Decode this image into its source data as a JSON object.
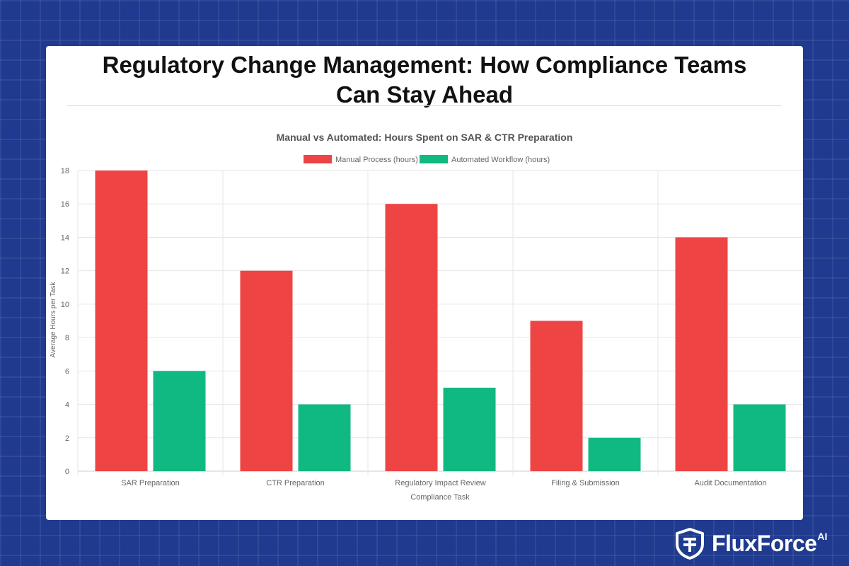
{
  "page": {
    "title_lines": [
      "Regulatory Change Management: How Compliance Teams",
      "Can Stay Ahead"
    ]
  },
  "brand": {
    "name": "FluxForce",
    "suffix": "AI",
    "icon": "shield-logo-icon"
  },
  "colors": {
    "background": "#1f3a8f",
    "manual": "#ef4444",
    "automated": "#10b981"
  },
  "chart_data": {
    "type": "bar",
    "title": "Manual vs Automated: Hours Spent on SAR & CTR Preparation",
    "xlabel": "Compliance Task",
    "ylabel": "Average Hours per Task",
    "categories": [
      "SAR Preparation",
      "CTR Preparation",
      "Regulatory Impact Review",
      "Filing & Submission",
      "Audit Documentation"
    ],
    "series": [
      {
        "name": "Manual Process (hours)",
        "color": "#ef4444",
        "values": [
          18,
          12,
          16,
          9,
          14
        ]
      },
      {
        "name": "Automated Workflow (hours)",
        "color": "#10b981",
        "values": [
          6,
          4,
          5,
          2,
          4
        ]
      }
    ],
    "ylim": [
      0,
      18
    ],
    "yticks": [
      0,
      2,
      4,
      6,
      8,
      10,
      12,
      14,
      16,
      18
    ],
    "grid": true,
    "legend": "top-center"
  }
}
